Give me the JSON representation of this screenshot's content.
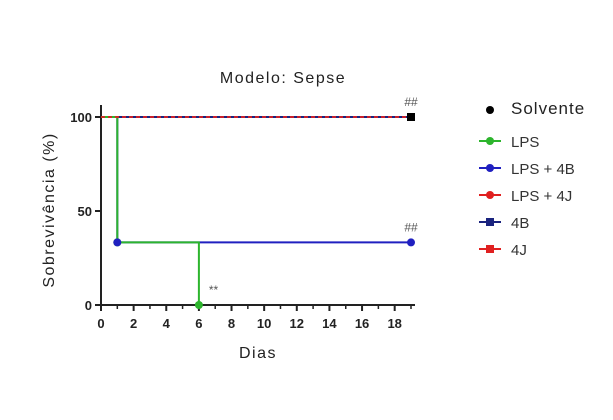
{
  "chart_data": {
    "type": "line",
    "step": true,
    "title": "Modelo: Sepse",
    "xlabel": "Dias",
    "ylabel": "Sobrevivência (%)",
    "xlim": [
      0,
      19
    ],
    "ylim": [
      0,
      100
    ],
    "xticks": [
      "0",
      "2",
      "4",
      "6",
      "8",
      "10",
      "12",
      "14",
      "16",
      "18"
    ],
    "yticks": [
      "0",
      "50",
      "100"
    ],
    "legend_position": "right",
    "series": [
      {
        "name": "Solvente",
        "color": "#000000",
        "marker": "circle",
        "x": [
          0,
          19
        ],
        "y": [
          100,
          100
        ]
      },
      {
        "name": "LPS",
        "color": "#2db52d",
        "marker": "circle",
        "x": [
          0,
          1,
          6
        ],
        "y": [
          100,
          33.3,
          0
        ]
      },
      {
        "name": "LPS + 4B",
        "color": "#2020c0",
        "marker": "circle",
        "x": [
          0,
          1,
          19
        ],
        "y": [
          100,
          33.3,
          33.3
        ]
      },
      {
        "name": "LPS + 4J",
        "color": "#e02020",
        "marker": "circle",
        "x": [
          0,
          19
        ],
        "y": [
          100,
          100
        ]
      },
      {
        "name": "4B",
        "color": "#1a237e",
        "marker": "square",
        "x": [
          0,
          19
        ],
        "y": [
          100,
          100
        ]
      },
      {
        "name": "4J",
        "color": "#e02020",
        "marker": "square",
        "x": [
          0,
          19
        ],
        "y": [
          100,
          100
        ]
      }
    ],
    "annotations": [
      {
        "text": "##",
        "x": 19,
        "y": 100
      },
      {
        "text": "##",
        "x": 19,
        "y": 33.3
      },
      {
        "text": "**",
        "x": 6,
        "y": 0
      }
    ]
  }
}
